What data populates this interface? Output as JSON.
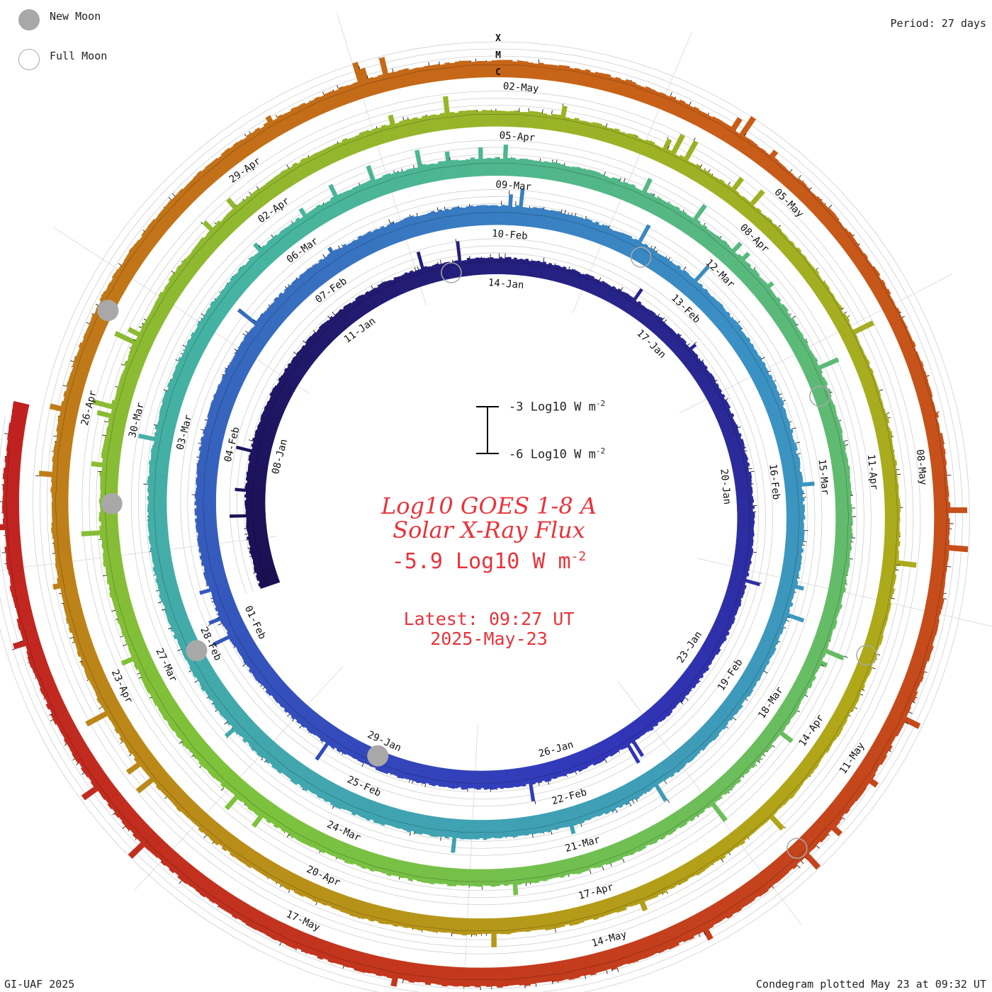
{
  "legend": {
    "new_moon": "New Moon",
    "full_moon": "Full Moon"
  },
  "period": "Period: 27 days",
  "credit": "GI-UAF 2025",
  "plotted": "Condegram plotted May 23 at 09:32 UT",
  "center": {
    "title_line1": "Log10 GOES 1-8 A",
    "title_line2": "Solar X-Ray Flux",
    "value": "-5.9 Log10 W m",
    "value_sup": "-2",
    "latest_line1": "Latest: 09:27 UT",
    "latest_line2": "2025-May-23"
  },
  "scale_bar": {
    "top_label": "-3 Log10 W m",
    "bottom_label": "-6 Log10 W m",
    "sup": "-2"
  },
  "chart_data": {
    "type": "area",
    "layout": "spiral condegram",
    "period_days": 27,
    "start_date": "2025-01-06",
    "end_date": "2025-05-23",
    "flare_class_labels": [
      "X",
      "M",
      "C"
    ],
    "ring_colors": [
      "#1a0f52",
      "#3135b8",
      "#3a90c4",
      "#45b4a0",
      "#7cc23c",
      "#b0a818",
      "#c86018",
      "#c02020"
    ],
    "date_labels": [
      "08-Jan",
      "11-Jan",
      "14-Jan",
      "17-Jan",
      "20-Jan",
      "23-Jan",
      "26-Jan",
      "29-Jan",
      "01-Feb",
      "04-Feb",
      "07-Feb",
      "10-Feb",
      "13-Feb",
      "16-Feb",
      "19-Feb",
      "22-Feb",
      "25-Feb",
      "28-Feb",
      "03-Mar",
      "06-Mar",
      "09-Mar",
      "12-Mar",
      "15-Mar",
      "18-Mar",
      "21-Mar",
      "24-Mar",
      "27-Mar",
      "30-Mar",
      "02-Apr",
      "05-Apr",
      "08-Apr",
      "11-Apr",
      "14-Apr",
      "17-Apr",
      "20-Apr",
      "23-Apr",
      "26-Apr",
      "29-Apr",
      "02-May",
      "05-May",
      "08-May",
      "11-May",
      "14-May",
      "17-May"
    ],
    "new_moons": [
      "2025-01-29",
      "2025-02-28",
      "2025-03-29",
      "2025-04-27"
    ],
    "full_moons": [
      "2025-01-13",
      "2025-02-12",
      "2025-03-14",
      "2025-04-13",
      "2025-05-12"
    ],
    "latest_value": -5.9,
    "flux_log10_series_sample": [
      {
        "date": "2025-01-08",
        "value": -5.6
      },
      {
        "date": "2025-01-15",
        "value": -5.9
      },
      {
        "date": "2025-01-22",
        "value": -5.8
      },
      {
        "date": "2025-01-29",
        "value": -5.7
      },
      {
        "date": "2025-02-05",
        "value": -5.5
      },
      {
        "date": "2025-02-12",
        "value": -5.7
      },
      {
        "date": "2025-02-19",
        "value": -5.8
      },
      {
        "date": "2025-02-26",
        "value": -5.6
      },
      {
        "date": "2025-03-05",
        "value": -5.7
      },
      {
        "date": "2025-03-12",
        "value": -5.8
      },
      {
        "date": "2025-03-19",
        "value": -5.9
      },
      {
        "date": "2025-03-26",
        "value": -5.7
      },
      {
        "date": "2025-04-02",
        "value": -5.8
      },
      {
        "date": "2025-04-09",
        "value": -6.0
      },
      {
        "date": "2025-04-16",
        "value": -5.9
      },
      {
        "date": "2025-04-23",
        "value": -5.8
      },
      {
        "date": "2025-04-30",
        "value": -5.8
      },
      {
        "date": "2025-05-07",
        "value": -6.0
      },
      {
        "date": "2025-05-14",
        "value": -5.6
      },
      {
        "date": "2025-05-21",
        "value": -5.9
      }
    ]
  }
}
